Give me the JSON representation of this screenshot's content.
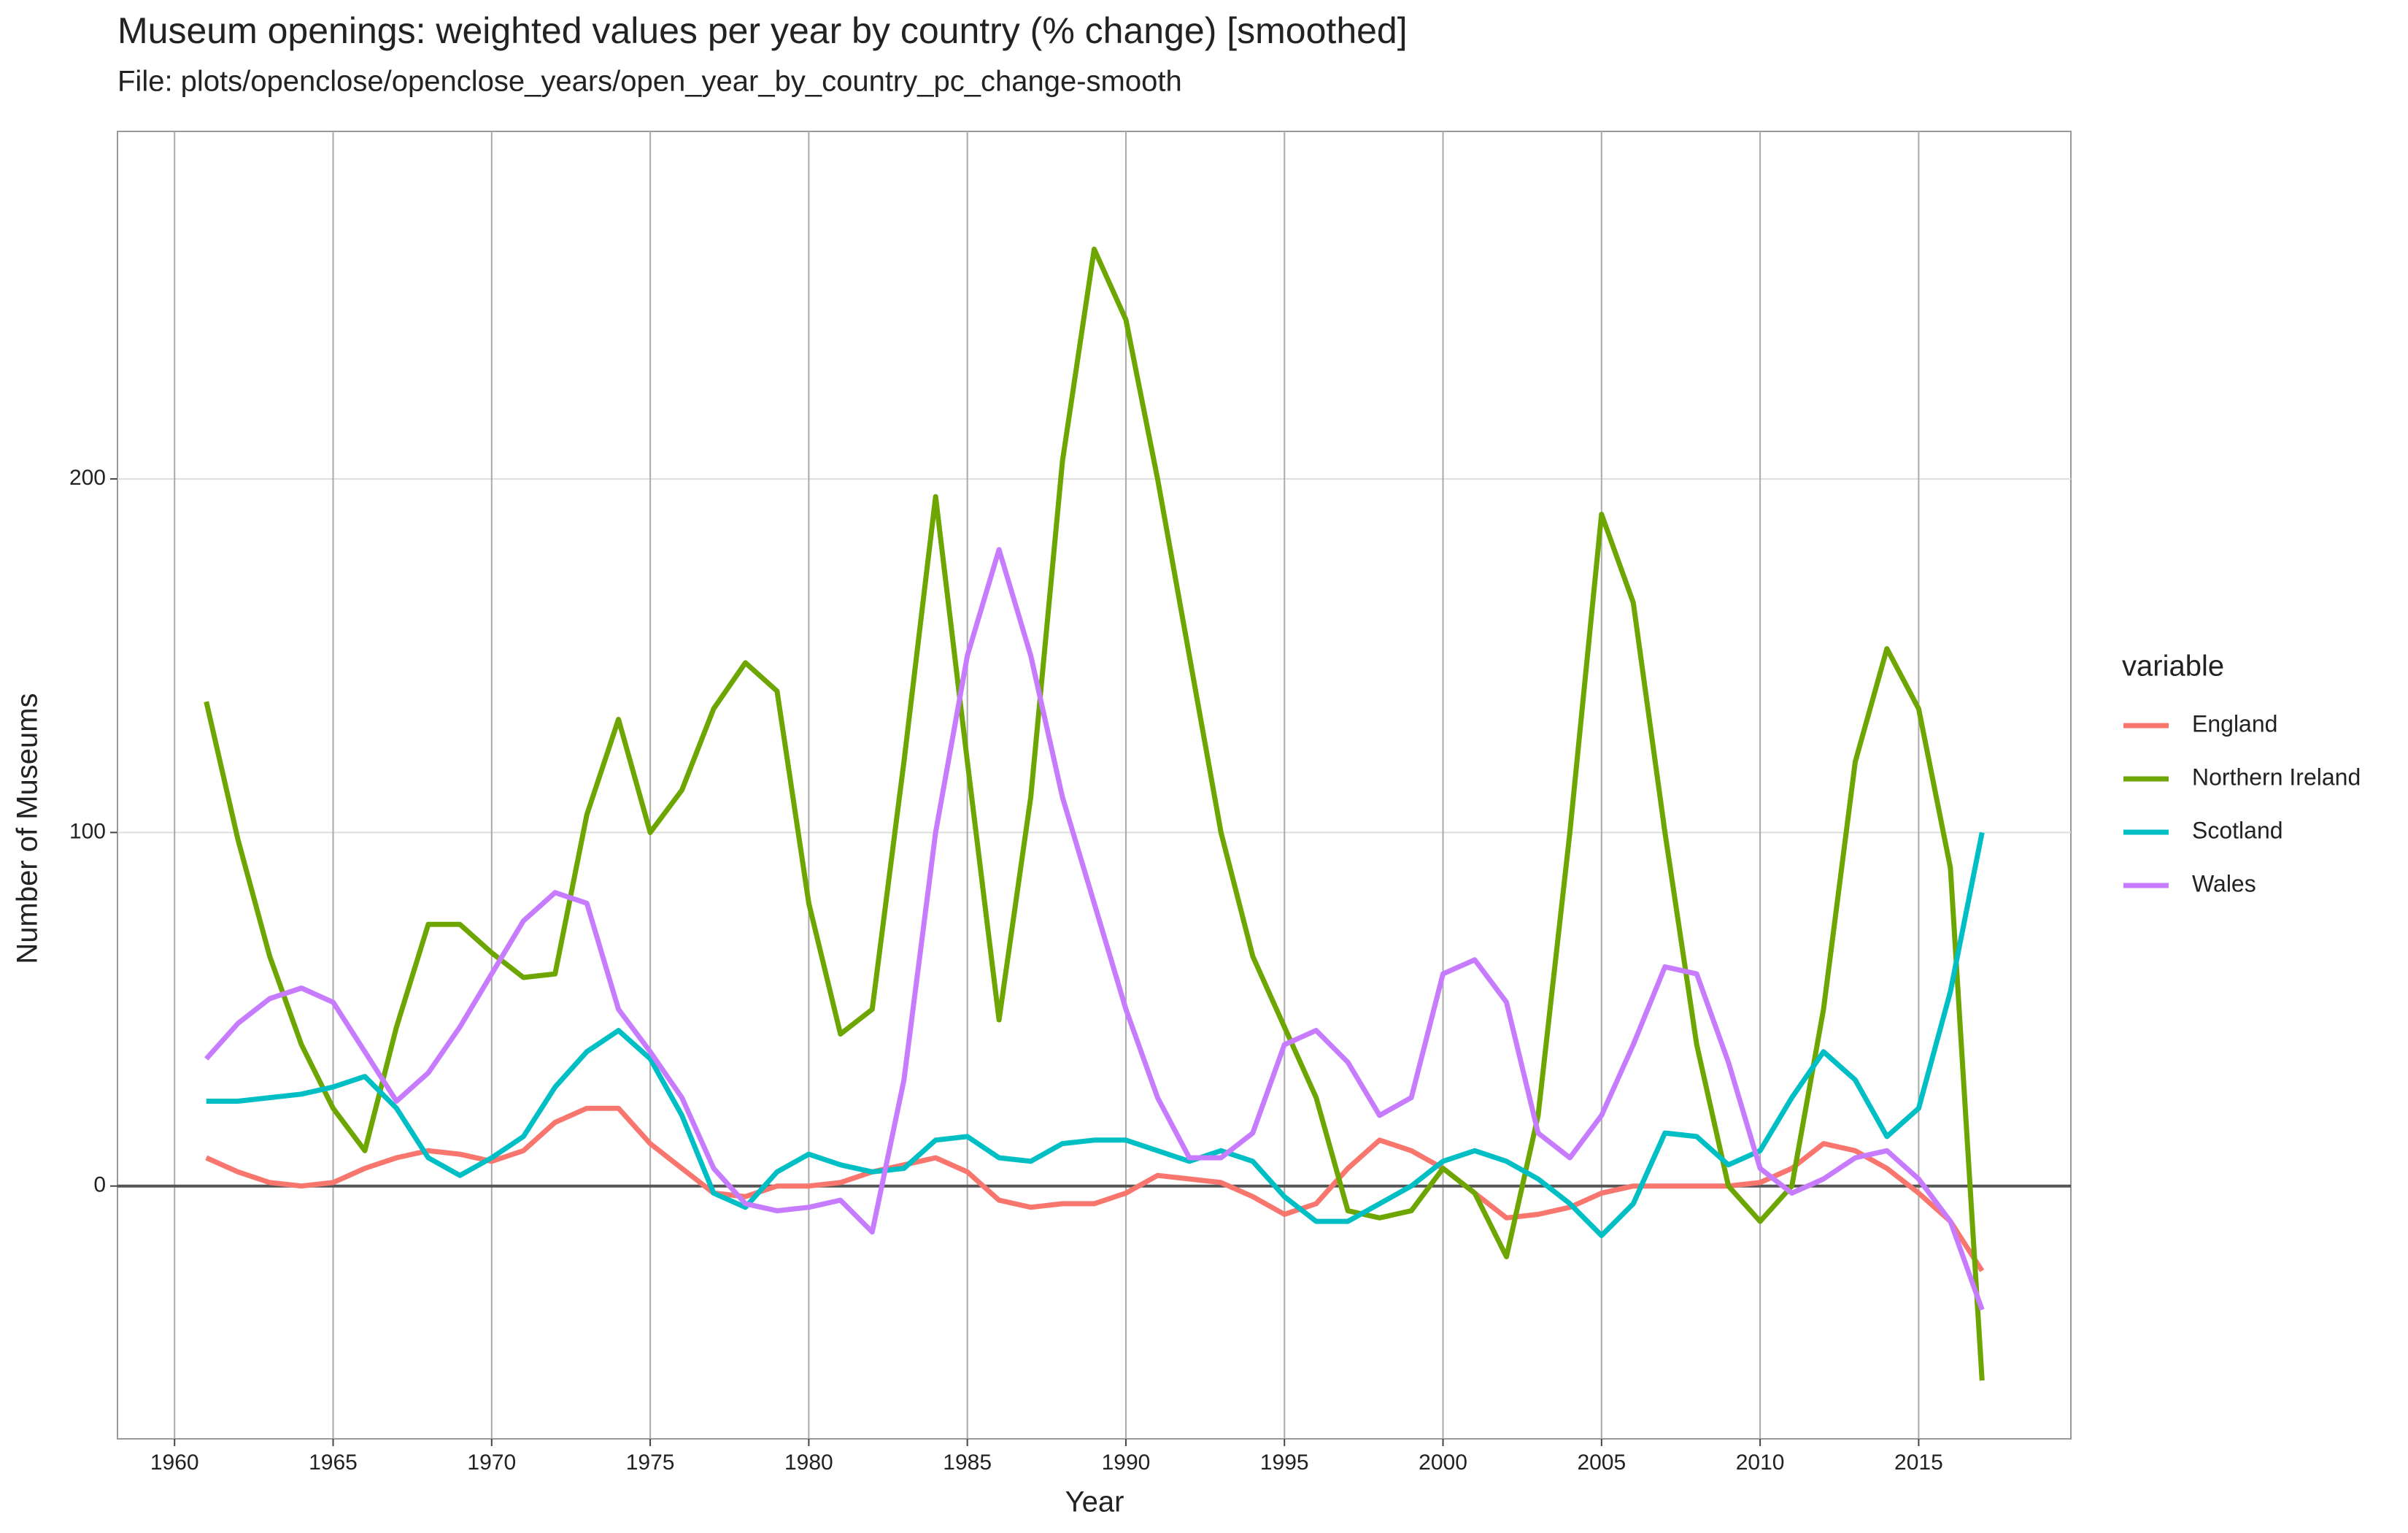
{
  "chart_data": {
    "type": "line",
    "title": "Museum openings: weighted values per year by country (% change) [smoothed]",
    "subtitle": "File: plots/openclose/openclose_years/open_year_by_country_pc_change-smooth",
    "x_label": "Year",
    "y_label": "Number of Museums",
    "legend_title": "variable",
    "x": [
      1961,
      1962,
      1963,
      1964,
      1965,
      1966,
      1967,
      1968,
      1969,
      1970,
      1971,
      1972,
      1973,
      1974,
      1975,
      1976,
      1977,
      1978,
      1979,
      1980,
      1981,
      1982,
      1983,
      1984,
      1985,
      1986,
      1987,
      1988,
      1989,
      1990,
      1991,
      1992,
      1993,
      1994,
      1995,
      1996,
      1997,
      1998,
      1999,
      2000,
      2001,
      2002,
      2003,
      2004,
      2005,
      2006,
      2007,
      2008,
      2009,
      2010,
      2011,
      2012,
      2013,
      2014,
      2015,
      2016,
      2017
    ],
    "series": [
      {
        "name": "England",
        "color": "#F8766D",
        "values": [
          8,
          4,
          1,
          0,
          1,
          5,
          8,
          10,
          9,
          7,
          10,
          18,
          22,
          22,
          12,
          5,
          -2,
          -3,
          0,
          0,
          1,
          4,
          6,
          8,
          4,
          -4,
          -6,
          -5,
          -5,
          -2,
          3,
          2,
          1,
          -3,
          -8,
          -5,
          5,
          13,
          10,
          5,
          -2,
          -9,
          -8,
          -6,
          -2,
          0,
          0,
          0,
          0,
          1,
          5,
          12,
          10,
          5,
          -2,
          -10,
          -24
        ]
      },
      {
        "name": "Northern Ireland",
        "color": "#6DA600",
        "values": [
          137,
          98,
          65,
          40,
          22,
          10,
          45,
          74,
          74,
          66,
          59,
          60,
          105,
          132,
          100,
          112,
          135,
          148,
          140,
          80,
          43,
          50,
          120,
          195,
          120,
          47,
          110,
          205,
          265,
          245,
          200,
          150,
          100,
          65,
          45,
          25,
          -7,
          -9,
          -7,
          5,
          -2,
          -20,
          20,
          100,
          190,
          165,
          100,
          40,
          0,
          -10,
          0,
          50,
          120,
          152,
          135,
          90,
          -55
        ]
      },
      {
        "name": "Scotland",
        "color": "#00BFC4",
        "values": [
          24,
          24,
          25,
          26,
          28,
          31,
          22,
          8,
          3,
          8,
          14,
          28,
          38,
          44,
          36,
          20,
          -2,
          -6,
          4,
          9,
          6,
          4,
          5,
          13,
          14,
          8,
          7,
          12,
          13,
          13,
          10,
          7,
          10,
          7,
          -3,
          -10,
          -10,
          -5,
          0,
          7,
          10,
          7,
          2,
          -5,
          -14,
          -5,
          15,
          14,
          6,
          10,
          25,
          38,
          30,
          14,
          22,
          55,
          100
        ]
      },
      {
        "name": "Wales",
        "color": "#C77CFF",
        "values": [
          36,
          46,
          53,
          56,
          52,
          38,
          24,
          32,
          45,
          60,
          75,
          83,
          80,
          50,
          38,
          25,
          5,
          -5,
          -7,
          -6,
          -4,
          -13,
          30,
          100,
          150,
          180,
          150,
          110,
          80,
          50,
          25,
          8,
          8,
          15,
          40,
          44,
          35,
          20,
          25,
          60,
          64,
          52,
          15,
          8,
          20,
          40,
          62,
          60,
          35,
          5,
          -2,
          2,
          8,
          10,
          2,
          -10,
          -35
        ]
      }
    ],
    "xlim": [
      1958.2,
      2019.8
    ],
    "xticks": [
      1960,
      1965,
      1970,
      1975,
      1980,
      1985,
      1990,
      1995,
      2000,
      2005,
      2010,
      2015
    ],
    "ylim": [
      -71.5,
      298.3
    ],
    "yticks": [
      0,
      100,
      200
    ],
    "hline": 0,
    "grid": true,
    "legend": "right"
  }
}
